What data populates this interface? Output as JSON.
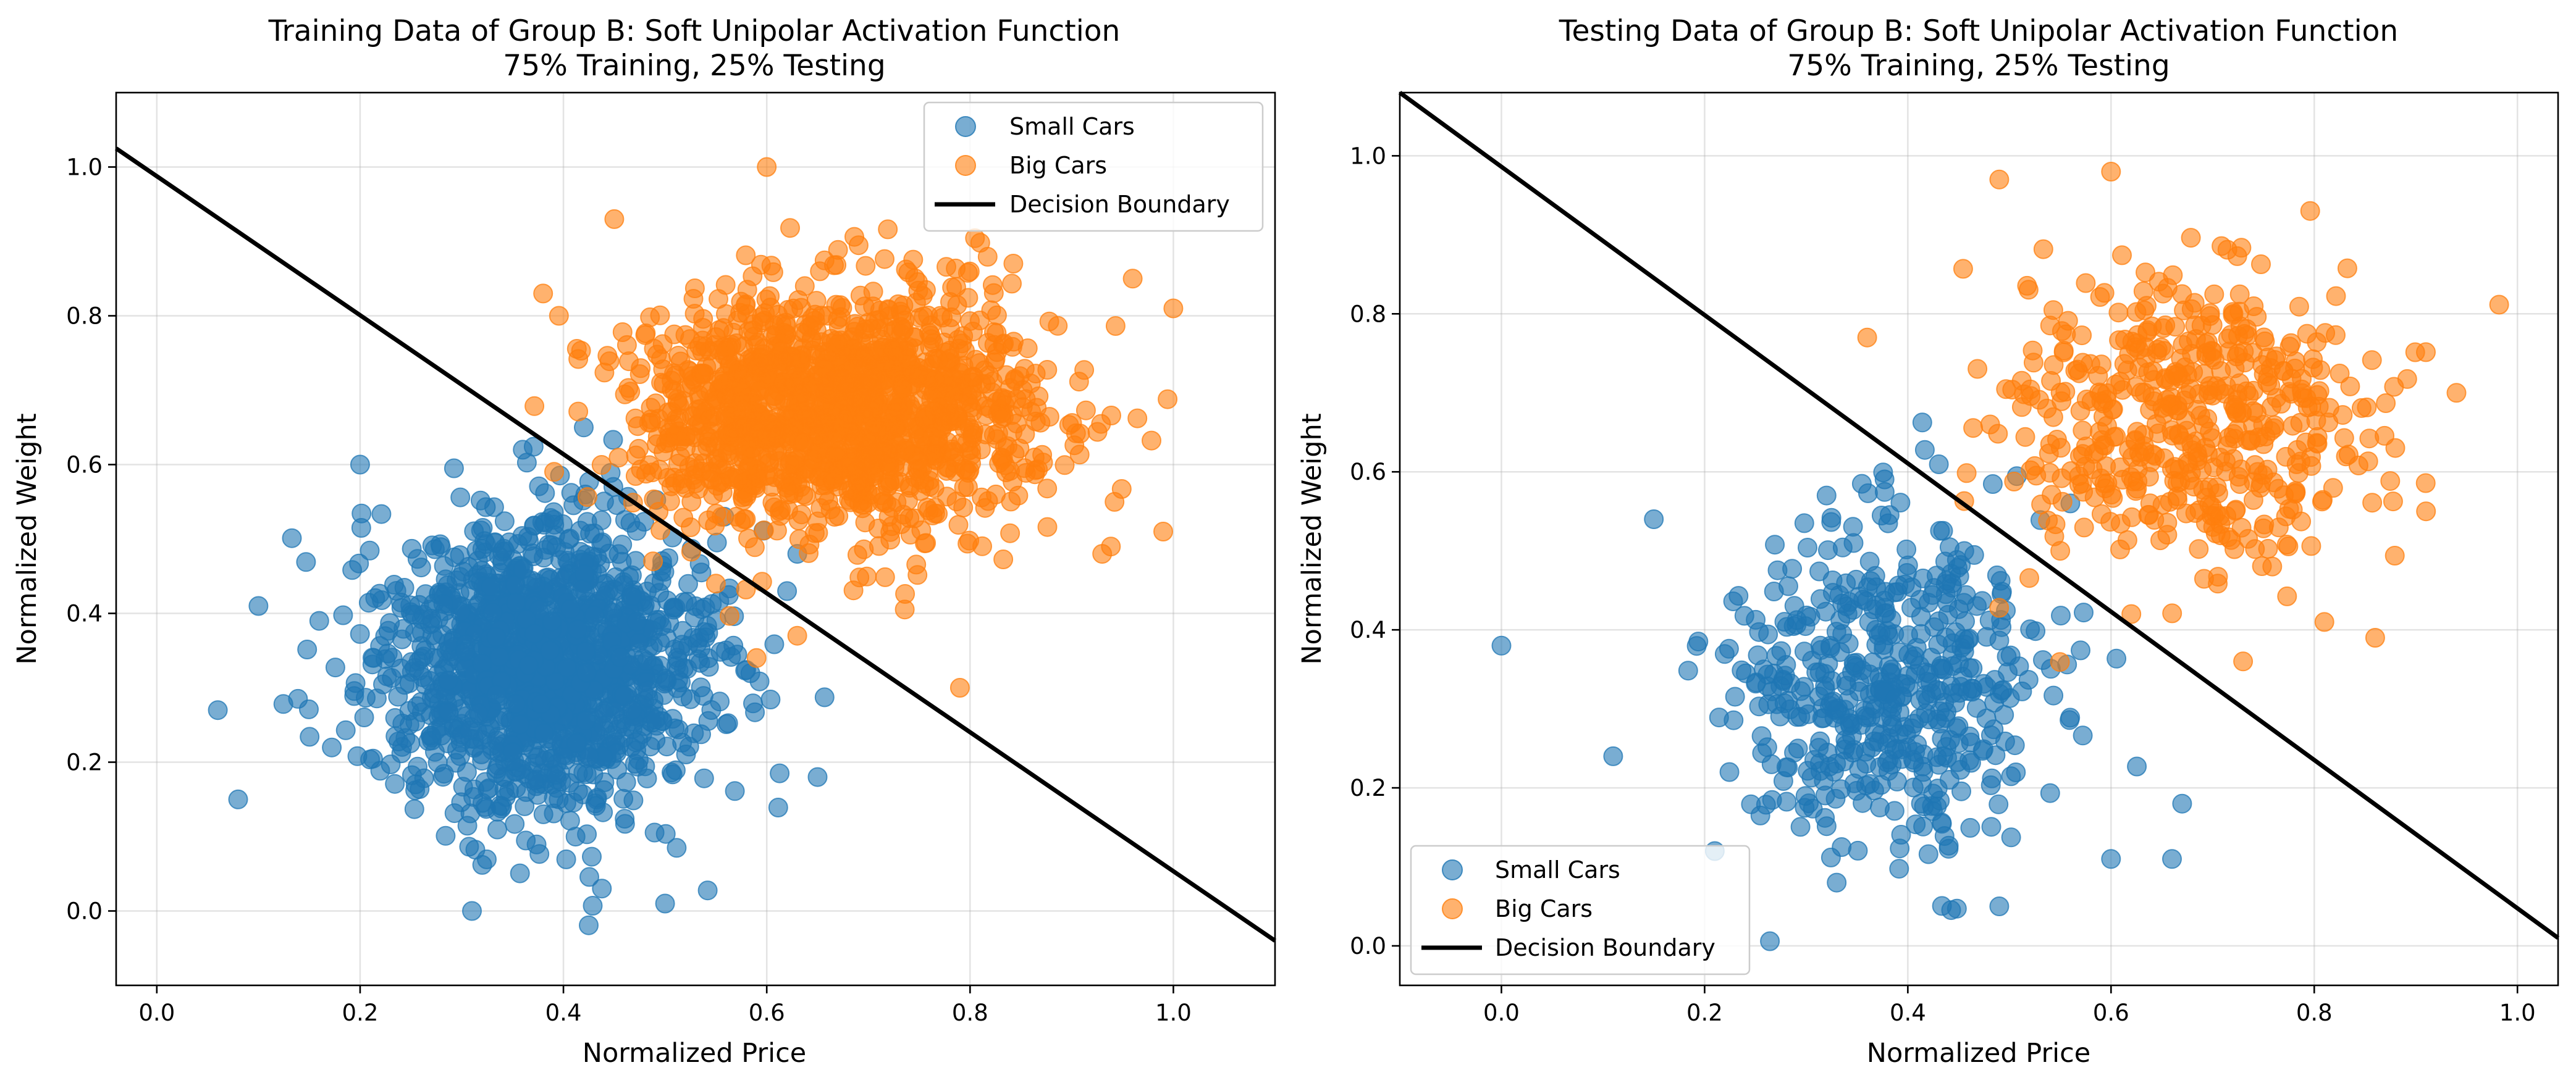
{
  "chart_data": [
    {
      "type": "scatter",
      "title_line1": "Training Data of Group B: Soft Unipolar Activation Function",
      "title_line2": "75% Training, 25% Testing",
      "xlabel": "Normalized Price",
      "ylabel": "Normalized Weight",
      "xlim": [
        -0.04,
        1.1
      ],
      "ylim": [
        -0.1,
        1.1
      ],
      "xticks": [
        "0.0",
        "0.2",
        "0.4",
        "0.6",
        "0.8",
        "1.0"
      ],
      "xtick_values": [
        0.0,
        0.2,
        0.4,
        0.6,
        0.8,
        1.0
      ],
      "yticks": [
        "0.0",
        "0.2",
        "0.4",
        "0.6",
        "0.8",
        "1.0"
      ],
      "ytick_values": [
        0.0,
        0.2,
        0.4,
        0.6,
        0.8,
        1.0
      ],
      "grid": true,
      "legend_position": "upper right",
      "series": [
        {
          "name": "Small Cars",
          "color": "#1f77b4",
          "cluster_center": [
            0.38,
            0.33
          ],
          "cluster_spread": [
            0.08,
            0.1
          ],
          "count": 1500,
          "outliers": [
            [
              0.06,
              0.27
            ],
            [
              0.08,
              0.15
            ],
            [
              0.31,
              0.0
            ],
            [
              0.5,
              0.01
            ],
            [
              0.1,
              0.41
            ],
            [
              0.2,
              0.6
            ],
            [
              0.63,
              0.48
            ],
            [
              0.62,
              0.43
            ],
            [
              0.65,
              0.18
            ],
            [
              0.36,
              0.62
            ],
            [
              0.42,
              0.65
            ]
          ]
        },
        {
          "name": "Big Cars",
          "color": "#ff7f0e",
          "cluster_center": [
            0.67,
            0.67
          ],
          "cluster_spread": [
            0.1,
            0.08
          ],
          "count": 1500,
          "outliers": [
            [
              0.6,
              1.0
            ],
            [
              0.38,
              0.83
            ],
            [
              0.45,
              0.93
            ],
            [
              1.0,
              0.81
            ],
            [
              0.96,
              0.85
            ],
            [
              0.93,
              0.48
            ],
            [
              0.99,
              0.51
            ],
            [
              0.79,
              0.3
            ],
            [
              0.59,
              0.34
            ],
            [
              0.63,
              0.37
            ],
            [
              0.55,
              0.44
            ]
          ]
        }
      ],
      "decision_boundary": {
        "name": "Decision Boundary",
        "color": "#000000",
        "points": [
          [
            -0.04,
            1.025
          ],
          [
            1.1,
            -0.04
          ]
        ]
      }
    },
    {
      "type": "scatter",
      "title_line1": "Testing Data of Group B: Soft Unipolar Activation Function",
      "title_line2": "75% Training, 25% Testing",
      "xlabel": "Normalized Price",
      "ylabel": "Normalized Weight",
      "xlim": [
        -0.1,
        1.04
      ],
      "ylim": [
        -0.05,
        1.08
      ],
      "xticks": [
        "0.0",
        "0.2",
        "0.4",
        "0.6",
        "0.8",
        "1.0"
      ],
      "xtick_values": [
        0.0,
        0.2,
        0.4,
        0.6,
        0.8,
        1.0
      ],
      "yticks": [
        "0.0",
        "0.2",
        "0.4",
        "0.6",
        "0.8",
        "1.0"
      ],
      "ytick_values": [
        0.0,
        0.2,
        0.4,
        0.6,
        0.8,
        1.0
      ],
      "grid": true,
      "legend_position": "lower left",
      "series": [
        {
          "name": "Small Cars",
          "color": "#1f77b4",
          "cluster_center": [
            0.38,
            0.33
          ],
          "cluster_spread": [
            0.08,
            0.1
          ],
          "count": 500,
          "outliers": [
            [
              0.0,
              0.38
            ],
            [
              0.11,
              0.24
            ],
            [
              0.15,
              0.54
            ],
            [
              0.21,
              0.12
            ],
            [
              0.33,
              0.08
            ],
            [
              0.49,
              0.05
            ],
            [
              0.6,
              0.11
            ],
            [
              0.66,
              0.11
            ],
            [
              0.67,
              0.18
            ],
            [
              0.56,
              0.56
            ],
            [
              0.32,
              0.57
            ]
          ]
        },
        {
          "name": "Big Cars",
          "color": "#ff7f0e",
          "cluster_center": [
            0.68,
            0.67
          ],
          "cluster_spread": [
            0.09,
            0.09
          ],
          "count": 500,
          "outliers": [
            [
              0.36,
              0.77
            ],
            [
              0.49,
              0.97
            ],
            [
              0.6,
              0.98
            ],
            [
              0.94,
              0.7
            ],
            [
              0.91,
              0.55
            ],
            [
              0.86,
              0.39
            ],
            [
              0.73,
              0.36
            ],
            [
              0.81,
              0.41
            ],
            [
              0.55,
              0.5
            ],
            [
              0.62,
              0.42
            ]
          ]
        }
      ],
      "decision_boundary": {
        "name": "Decision Boundary",
        "color": "#000000",
        "points": [
          [
            -0.1,
            1.08
          ],
          [
            1.04,
            0.01
          ]
        ]
      }
    }
  ]
}
